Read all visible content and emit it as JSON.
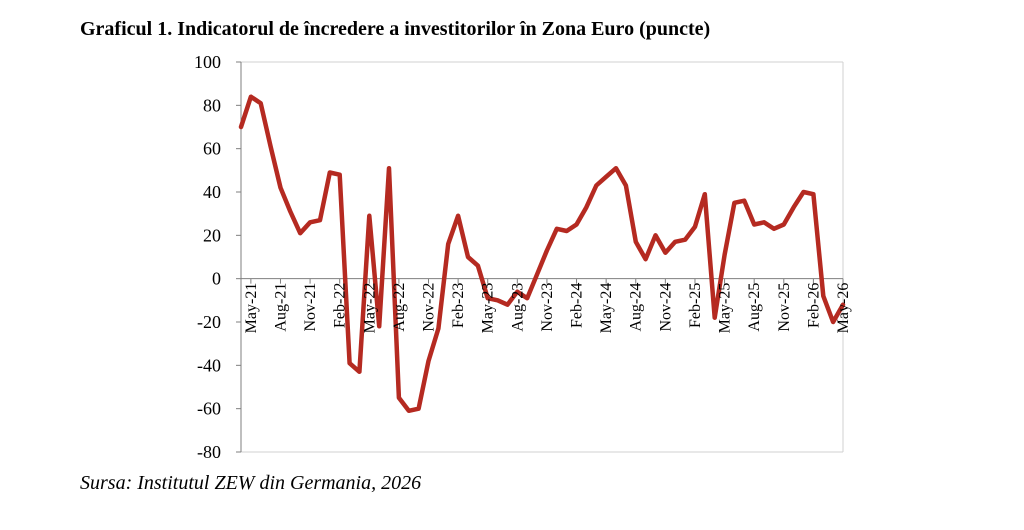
{
  "title": "Graficul 1. Indicatorul de încredere a investitorilor în Zona Euro (puncte)",
  "source": "Sursa: Institutul ZEW din Germania, 2026",
  "colors": {
    "line": "#B52A21",
    "axis": "#7f7f7f",
    "frame": "#d0d0d0"
  },
  "chart_data": {
    "type": "line",
    "title": "",
    "xlabel": "",
    "ylabel": "",
    "ylim": [
      -80,
      100
    ],
    "yticks": [
      100,
      80,
      60,
      40,
      20,
      0,
      -20,
      -40,
      -60,
      -80
    ],
    "grid": false,
    "legend": "none",
    "x": [
      "Apr-21",
      "May-21",
      "Jun-21",
      "Jul-21",
      "Aug-21",
      "Sep-21",
      "Oct-21",
      "Nov-21",
      "Dec-21",
      "Jan-22",
      "Feb-22",
      "Mar-22",
      "Apr-22",
      "May-22",
      "Jun-22",
      "Jul-22",
      "Aug-22",
      "Sep-22",
      "Oct-22",
      "Nov-22",
      "Dec-22",
      "Jan-23",
      "Feb-23",
      "Mar-23",
      "Apr-23",
      "May-23",
      "Jun-23",
      "Jul-23",
      "Aug-23",
      "Sep-23",
      "Oct-23",
      "Nov-23",
      "Dec-23",
      "Jan-24",
      "Feb-24",
      "Mar-24",
      "Apr-24",
      "May-24",
      "Jun-24",
      "Jul-24",
      "Aug-24",
      "Sep-24",
      "Oct-24",
      "Nov-24",
      "Dec-24",
      "Jan-25",
      "Feb-25",
      "Mar-25",
      "Apr-25",
      "May-25",
      "Jun-25",
      "Jul-25",
      "Aug-25",
      "Sep-25",
      "Oct-25",
      "Nov-25",
      "Dec-25",
      "Jan-26",
      "Feb-26",
      "Mar-26",
      "Apr-26",
      "May-26"
    ],
    "xtick_labels": [
      "May-21",
      "Aug-21",
      "Nov-21",
      "Feb-22",
      "May-22",
      "Aug-22",
      "Nov-22",
      "Feb-23",
      "May-23",
      "Aug-23",
      "Nov-23",
      "Feb-24",
      "May-24",
      "Aug-24",
      "Nov-24",
      "Feb-25",
      "May-25",
      "Aug-25",
      "Nov-25",
      "Feb-26",
      "May-26"
    ],
    "series": [
      {
        "values": [
          70,
          84,
          81,
          61,
          42,
          31,
          21,
          26,
          27,
          49,
          48,
          -39,
          -43,
          29,
          -22,
          51,
          -55,
          -61,
          -60,
          -38,
          -23,
          16,
          29,
          10,
          6,
          -9,
          -10,
          -12,
          -6,
          -9,
          2,
          13,
          23,
          22,
          25,
          33,
          43,
          47,
          51,
          43,
          17,
          9,
          20,
          12,
          17,
          18,
          24,
          39,
          -18,
          11,
          35,
          36,
          25,
          26,
          23,
          25,
          33,
          40,
          39,
          -8,
          -20,
          -12
        ]
      }
    ]
  }
}
